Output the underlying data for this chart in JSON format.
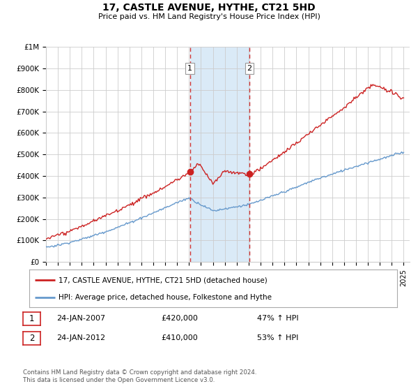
{
  "title": "17, CASTLE AVENUE, HYTHE, CT21 5HD",
  "subtitle": "Price paid vs. HM Land Registry's House Price Index (HPI)",
  "yticks": [
    0,
    100000,
    200000,
    300000,
    400000,
    500000,
    600000,
    700000,
    800000,
    900000,
    1000000
  ],
  "ytick_labels": [
    "£0",
    "£100K",
    "£200K",
    "£300K",
    "£400K",
    "£500K",
    "£600K",
    "£700K",
    "£800K",
    "£900K",
    "£1M"
  ],
  "sale1_date": 2007.07,
  "sale1_price": 420000,
  "sale1_label": "1",
  "sale1_hpi_pct": "47% ↑ HPI",
  "sale1_date_str": "24-JAN-2007",
  "sale2_date": 2012.07,
  "sale2_price": 410000,
  "sale2_label": "2",
  "sale2_hpi_pct": "53% ↑ HPI",
  "sale2_date_str": "24-JAN-2012",
  "highlight_color": "#daeaf7",
  "vline_color": "#cc3333",
  "red_line_color": "#cc2222",
  "blue_line_color": "#6699cc",
  "grid_color": "#cccccc",
  "background_color": "#ffffff",
  "legend_label_red": "17, CASTLE AVENUE, HYTHE, CT21 5HD (detached house)",
  "legend_label_blue": "HPI: Average price, detached house, Folkestone and Hythe",
  "footnote": "Contains HM Land Registry data © Crown copyright and database right 2024.\nThis data is licensed under the Open Government Licence v3.0."
}
